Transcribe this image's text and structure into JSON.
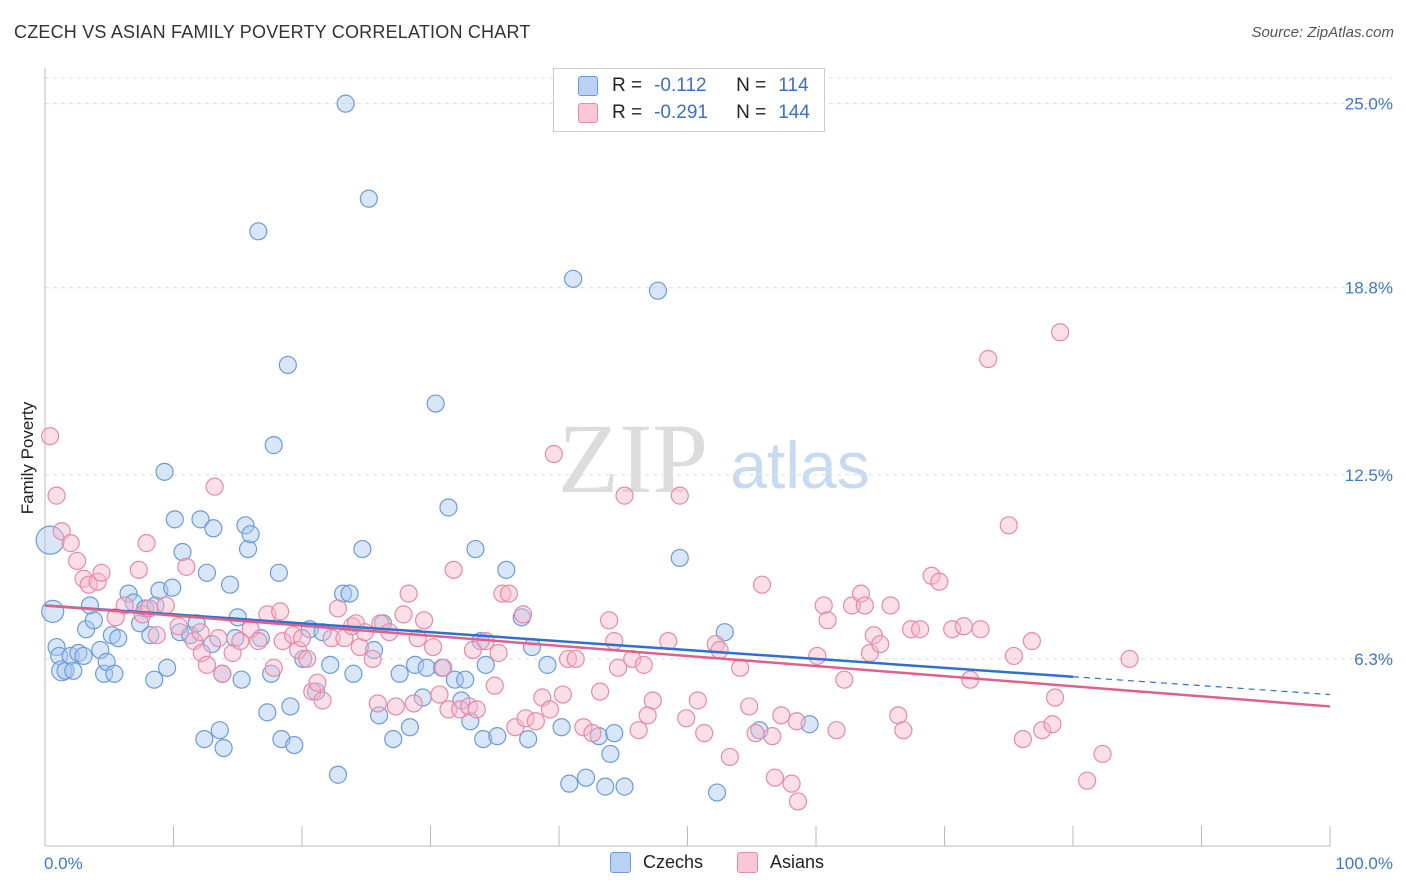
{
  "title": "CZECH VS ASIAN FAMILY POVERTY CORRELATION CHART",
  "source": "Source: ZipAtlas.com",
  "watermark": {
    "zip": "ZIP",
    "atlas": "atlas"
  },
  "legend_top": {
    "czechs": {
      "r_label": "R =",
      "r_value": "-0.112",
      "n_label": "N =",
      "n_value": "114"
    },
    "asians": {
      "r_label": "R =",
      "r_value": "-0.291",
      "n_label": "N =",
      "n_value": "144"
    }
  },
  "colors": {
    "czech_fill": "#a9c7ef",
    "czech_stroke": "#6c9bdb",
    "czech_line": "#2f6fd0",
    "asian_fill": "#f5b8cb",
    "asian_stroke": "#e88aa7",
    "asian_line": "#e0608d",
    "tick_label": "#3b78d0",
    "grid": "#dddddd"
  },
  "chart_data": {
    "type": "scatter",
    "title": "CZECH VS ASIAN FAMILY POVERTY CORRELATION CHART",
    "xlabel": "",
    "ylabel": "Family Poverty",
    "xlim": [
      0,
      100
    ],
    "ylim": [
      0,
      26.2
    ],
    "x_tick_labels": [
      "0.0%",
      "100.0%"
    ],
    "y_ticks": [
      6.3,
      12.5,
      18.8,
      25.0
    ],
    "y_tick_labels": [
      "6.3%",
      "12.5%",
      "18.8%",
      "25.0%"
    ],
    "grid": "horizontal dashed",
    "legend_position": "bottom-center",
    "series": [
      {
        "name": "Czechs",
        "trend": {
          "x": [
            0,
            80,
            100
          ],
          "y": [
            8.1,
            5.7,
            5.1
          ],
          "solid_until": 80
        },
        "points": [
          [
            0.4,
            10.3
          ],
          [
            0.6,
            7.9
          ],
          [
            0.9,
            6.7
          ],
          [
            1.1,
            6.4
          ],
          [
            1.3,
            5.9
          ],
          [
            1.6,
            5.9
          ],
          [
            2.0,
            6.4
          ],
          [
            2.2,
            5.9
          ],
          [
            2.6,
            6.5
          ],
          [
            3.0,
            6.4
          ],
          [
            3.2,
            7.3
          ],
          [
            3.5,
            8.1
          ],
          [
            3.8,
            7.6
          ],
          [
            4.6,
            5.8
          ],
          [
            4.3,
            6.6
          ],
          [
            4.8,
            6.2
          ],
          [
            5.2,
            7.1
          ],
          [
            5.4,
            5.8
          ],
          [
            5.7,
            7.0
          ],
          [
            6.5,
            8.5
          ],
          [
            6.9,
            8.2
          ],
          [
            7.4,
            7.5
          ],
          [
            7.8,
            8.0
          ],
          [
            8.2,
            7.1
          ],
          [
            8.5,
            5.6
          ],
          [
            8.6,
            8.1
          ],
          [
            8.9,
            8.6
          ],
          [
            9.3,
            12.6
          ],
          [
            9.5,
            6.0
          ],
          [
            9.9,
            8.7
          ],
          [
            10.1,
            11.0
          ],
          [
            10.5,
            7.2
          ],
          [
            10.7,
            9.9
          ],
          [
            11.3,
            7.1
          ],
          [
            11.8,
            7.5
          ],
          [
            12.1,
            11.0
          ],
          [
            12.4,
            3.6
          ],
          [
            12.6,
            9.2
          ],
          [
            13.0,
            6.8
          ],
          [
            13.1,
            10.7
          ],
          [
            13.6,
            3.9
          ],
          [
            13.8,
            5.8
          ],
          [
            13.9,
            3.3
          ],
          [
            14.4,
            8.8
          ],
          [
            14.8,
            7.0
          ],
          [
            15.0,
            7.7
          ],
          [
            15.3,
            5.6
          ],
          [
            15.6,
            10.8
          ],
          [
            15.8,
            10.0
          ],
          [
            16.0,
            10.5
          ],
          [
            16.6,
            20.7
          ],
          [
            16.8,
            7.0
          ],
          [
            17.3,
            4.5
          ],
          [
            17.6,
            5.8
          ],
          [
            17.8,
            13.5
          ],
          [
            18.2,
            9.2
          ],
          [
            18.4,
            3.6
          ],
          [
            18.9,
            16.2
          ],
          [
            19.1,
            4.7
          ],
          [
            19.4,
            3.4
          ],
          [
            20.1,
            6.3
          ],
          [
            20.6,
            7.3
          ],
          [
            21.1,
            5.2
          ],
          [
            21.6,
            7.2
          ],
          [
            22.2,
            6.1
          ],
          [
            22.8,
            2.4
          ],
          [
            23.2,
            8.5
          ],
          [
            23.4,
            25.0
          ],
          [
            23.7,
            8.5
          ],
          [
            24.0,
            5.8
          ],
          [
            24.7,
            10.0
          ],
          [
            25.2,
            21.8
          ],
          [
            25.6,
            6.6
          ],
          [
            26.0,
            4.4
          ],
          [
            26.3,
            7.5
          ],
          [
            27.1,
            3.6
          ],
          [
            27.6,
            5.8
          ],
          [
            28.4,
            4.0
          ],
          [
            28.8,
            6.1
          ],
          [
            29.4,
            5.0
          ],
          [
            29.7,
            6.0
          ],
          [
            30.4,
            14.9
          ],
          [
            30.9,
            6.0
          ],
          [
            31.4,
            11.4
          ],
          [
            31.9,
            5.6
          ],
          [
            32.4,
            4.9
          ],
          [
            32.7,
            5.6
          ],
          [
            33.1,
            4.2
          ],
          [
            33.5,
            10.0
          ],
          [
            33.9,
            6.9
          ],
          [
            34.1,
            3.6
          ],
          [
            34.3,
            6.1
          ],
          [
            35.2,
            3.7
          ],
          [
            35.9,
            9.3
          ],
          [
            37.1,
            7.7
          ],
          [
            37.6,
            3.6
          ],
          [
            37.9,
            6.7
          ],
          [
            39.1,
            6.1
          ],
          [
            40.2,
            4.0
          ],
          [
            40.8,
            2.1
          ],
          [
            41.1,
            19.1
          ],
          [
            42.1,
            2.3
          ],
          [
            43.1,
            3.7
          ],
          [
            43.6,
            2.0
          ],
          [
            44.0,
            3.1
          ],
          [
            44.3,
            3.8
          ],
          [
            45.1,
            2.0
          ],
          [
            47.7,
            18.7
          ],
          [
            49.4,
            9.7
          ],
          [
            52.3,
            1.8
          ],
          [
            52.9,
            7.2
          ],
          [
            55.6,
            3.9
          ],
          [
            59.5,
            4.1
          ]
        ]
      },
      {
        "name": "Asians",
        "trend": {
          "x": [
            0,
            100
          ],
          "y": [
            8.1,
            4.7
          ]
        },
        "points": [
          [
            0.4,
            13.8
          ],
          [
            0.9,
            11.8
          ],
          [
            1.3,
            10.6
          ],
          [
            2.0,
            10.2
          ],
          [
            2.5,
            9.6
          ],
          [
            3.0,
            9.0
          ],
          [
            3.4,
            8.8
          ],
          [
            4.1,
            8.9
          ],
          [
            4.4,
            9.2
          ],
          [
            5.5,
            7.7
          ],
          [
            6.2,
            8.1
          ],
          [
            7.3,
            9.3
          ],
          [
            7.6,
            7.8
          ],
          [
            7.9,
            10.2
          ],
          [
            8.1,
            8.0
          ],
          [
            8.7,
            7.1
          ],
          [
            9.4,
            8.1
          ],
          [
            10.4,
            7.4
          ],
          [
            11.0,
            9.4
          ],
          [
            11.6,
            6.9
          ],
          [
            12.1,
            7.2
          ],
          [
            12.2,
            6.5
          ],
          [
            12.6,
            6.1
          ],
          [
            13.2,
            12.1
          ],
          [
            13.5,
            7.0
          ],
          [
            13.8,
            5.8
          ],
          [
            14.6,
            6.5
          ],
          [
            15.2,
            6.9
          ],
          [
            16.0,
            7.3
          ],
          [
            16.6,
            6.9
          ],
          [
            17.3,
            7.8
          ],
          [
            17.8,
            6.0
          ],
          [
            18.3,
            7.9
          ],
          [
            18.5,
            6.9
          ],
          [
            19.3,
            7.1
          ],
          [
            19.7,
            6.6
          ],
          [
            20.0,
            7.0
          ],
          [
            20.4,
            6.3
          ],
          [
            20.8,
            5.2
          ],
          [
            21.2,
            5.5
          ],
          [
            21.6,
            4.9
          ],
          [
            22.3,
            7.0
          ],
          [
            22.8,
            8.0
          ],
          [
            23.3,
            7.0
          ],
          [
            23.9,
            7.4
          ],
          [
            24.2,
            7.5
          ],
          [
            24.5,
            6.7
          ],
          [
            24.9,
            7.2
          ],
          [
            25.5,
            6.3
          ],
          [
            25.9,
            4.8
          ],
          [
            26.1,
            7.5
          ],
          [
            26.8,
            7.2
          ],
          [
            27.3,
            4.7
          ],
          [
            27.9,
            7.8
          ],
          [
            28.3,
            8.5
          ],
          [
            28.7,
            4.8
          ],
          [
            29.0,
            7.0
          ],
          [
            29.5,
            7.6
          ],
          [
            30.2,
            6.7
          ],
          [
            30.7,
            5.1
          ],
          [
            31.0,
            6.0
          ],
          [
            31.4,
            4.6
          ],
          [
            31.8,
            9.3
          ],
          [
            32.3,
            4.6
          ],
          [
            33.0,
            4.7
          ],
          [
            33.3,
            6.6
          ],
          [
            33.6,
            4.6
          ],
          [
            34.3,
            6.9
          ],
          [
            35.0,
            5.4
          ],
          [
            35.3,
            6.5
          ],
          [
            35.6,
            8.5
          ],
          [
            36.1,
            8.5
          ],
          [
            36.6,
            4.0
          ],
          [
            37.2,
            7.8
          ],
          [
            37.4,
            4.3
          ],
          [
            38.2,
            4.2
          ],
          [
            38.7,
            5.0
          ],
          [
            39.3,
            4.6
          ],
          [
            39.6,
            13.2
          ],
          [
            40.3,
            5.1
          ],
          [
            40.7,
            6.3
          ],
          [
            41.3,
            6.3
          ],
          [
            41.9,
            4.0
          ],
          [
            42.6,
            3.8
          ],
          [
            43.2,
            5.2
          ],
          [
            43.9,
            7.6
          ],
          [
            44.3,
            6.9
          ],
          [
            44.6,
            6.0
          ],
          [
            45.1,
            11.8
          ],
          [
            45.7,
            6.3
          ],
          [
            46.2,
            3.9
          ],
          [
            46.6,
            6.1
          ],
          [
            46.9,
            4.4
          ],
          [
            47.3,
            4.9
          ],
          [
            48.5,
            6.9
          ],
          [
            49.4,
            11.8
          ],
          [
            49.9,
            4.3
          ],
          [
            50.8,
            4.9
          ],
          [
            51.3,
            3.8
          ],
          [
            52.2,
            6.8
          ],
          [
            52.5,
            6.6
          ],
          [
            53.3,
            3.0
          ],
          [
            54.1,
            6.0
          ],
          [
            54.8,
            4.7
          ],
          [
            55.3,
            3.8
          ],
          [
            55.8,
            8.8
          ],
          [
            56.6,
            3.7
          ],
          [
            56.8,
            2.3
          ],
          [
            57.3,
            4.4
          ],
          [
            58.1,
            2.1
          ],
          [
            58.5,
            4.2
          ],
          [
            58.6,
            1.5
          ],
          [
            60.1,
            6.4
          ],
          [
            60.6,
            8.1
          ],
          [
            60.9,
            7.6
          ],
          [
            61.6,
            3.9
          ],
          [
            62.2,
            5.6
          ],
          [
            62.8,
            8.1
          ],
          [
            63.5,
            8.5
          ],
          [
            63.8,
            8.1
          ],
          [
            64.2,
            6.5
          ],
          [
            64.5,
            7.1
          ],
          [
            65.0,
            6.8
          ],
          [
            65.8,
            8.1
          ],
          [
            66.4,
            4.4
          ],
          [
            66.8,
            3.9
          ],
          [
            67.4,
            7.3
          ],
          [
            68.1,
            7.3
          ],
          [
            69.0,
            9.1
          ],
          [
            69.6,
            8.9
          ],
          [
            70.6,
            7.3
          ],
          [
            71.5,
            7.4
          ],
          [
            72.0,
            5.6
          ],
          [
            72.8,
            7.3
          ],
          [
            73.4,
            16.4
          ],
          [
            75.0,
            10.8
          ],
          [
            75.4,
            6.4
          ],
          [
            76.1,
            3.6
          ],
          [
            76.8,
            6.9
          ],
          [
            77.6,
            3.9
          ],
          [
            78.4,
            4.1
          ],
          [
            78.6,
            5.0
          ],
          [
            79.0,
            17.3
          ],
          [
            81.1,
            2.2
          ],
          [
            82.3,
            3.1
          ],
          [
            84.4,
            6.3
          ]
        ]
      }
    ]
  },
  "legend_bottom": {
    "czechs": "Czechs",
    "asians": "Asians"
  }
}
